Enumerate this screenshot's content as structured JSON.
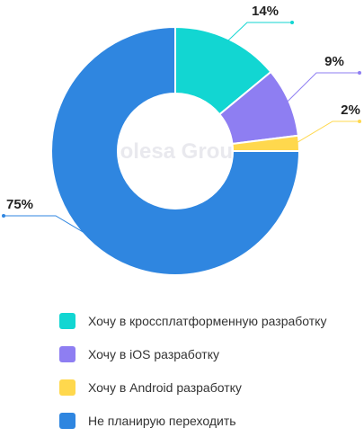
{
  "watermark": "Kolesa Group",
  "chart_data": {
    "type": "pie",
    "donut": true,
    "categories": [
      "Хочу в кроссплатформенную разработку",
      "Хочу в iOS разработку",
      "Хочу в Android разработку",
      "Не планирую переходить"
    ],
    "values": [
      14,
      9,
      2,
      75
    ],
    "labels": [
      "14%",
      "9%",
      "2%",
      "75%"
    ],
    "colors": [
      "#12d6d2",
      "#8e7ef2",
      "#ffd84d",
      "#2f86e0"
    ],
    "legend_position": "bottom"
  }
}
